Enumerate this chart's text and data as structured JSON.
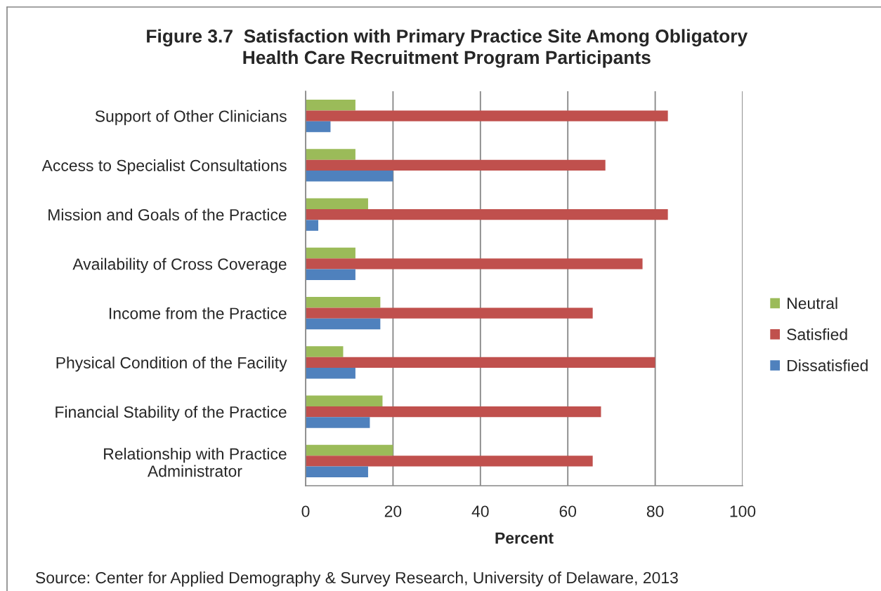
{
  "chart_data": {
    "type": "bar",
    "orientation": "horizontal",
    "title": "Figure 3.7  Satisfaction with Primary Practice Site Among Obligatory\nHealth Care Recruitment Program Participants",
    "xlabel": "Percent",
    "categories": [
      "Support of Other Clinicians",
      "Access to Specialist Consultations",
      "Mission and Goals of the Practice",
      "Availability of Cross Coverage",
      "Income from the Practice",
      "Physical Condition of the Facility",
      "Financial Stability of the Practice",
      "Relationship with Practice\nAdministrator"
    ],
    "series": [
      {
        "name": "Neutral",
        "color": "#9bbb59",
        "values": [
          11.4,
          11.4,
          14.3,
          11.4,
          17.1,
          8.6,
          17.6,
          20.0
        ]
      },
      {
        "name": "Satisfied",
        "color": "#c0504d",
        "values": [
          82.9,
          68.6,
          82.9,
          77.1,
          65.7,
          80.0,
          67.6,
          65.7
        ]
      },
      {
        "name": "Dissatisfied",
        "color": "#4f81bd",
        "values": [
          5.7,
          20.0,
          2.9,
          11.4,
          17.1,
          11.4,
          14.7,
          14.3
        ]
      }
    ],
    "xlim": [
      0,
      100
    ],
    "xticks": [
      0,
      20,
      40,
      60,
      80,
      100
    ],
    "grid": "x",
    "legend": "right",
    "annotations": [
      "Source: Center for Applied Demography & Survey Research, University of Delaware, 2013"
    ]
  }
}
